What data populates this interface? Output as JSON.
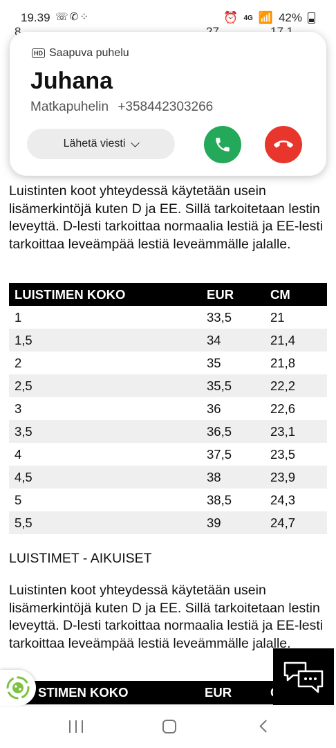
{
  "status_bar": {
    "time": "19.39",
    "notification_icons": "☏✆⁘",
    "signal_label": "4G",
    "battery": "42%"
  },
  "background_partial_row": {
    "size": "8",
    "eur": "27",
    "cm": "17,1"
  },
  "section_1": {
    "paragraph": "Luistinten koot yhteydessä käytetään usein lisämerkintöjä kuten D ja EE. Sillä tarkoitetaan lestin leveyttä. D-lesti tarkoittaa normaalia lestiä ja EE-lesti tarkoittaa leveämpää lestiä leveämmälle jalalle.",
    "table": {
      "headers": [
        "LUISTIMEN KOKO",
        "EUR",
        "CM"
      ],
      "rows": [
        [
          "1",
          "33,5",
          "21"
        ],
        [
          "1,5",
          "34",
          "21,4"
        ],
        [
          "2",
          "35",
          "21,8"
        ],
        [
          "2,5",
          "35,5",
          "22,2"
        ],
        [
          "3",
          "36",
          "22,6"
        ],
        [
          "3,5",
          "36,5",
          "23,1"
        ],
        [
          "4",
          "37,5",
          "23,5"
        ],
        [
          "4,5",
          "38",
          "23,9"
        ],
        [
          "5",
          "38,5",
          "24,3"
        ],
        [
          "5,5",
          "39",
          "24,7"
        ]
      ]
    }
  },
  "section_2": {
    "heading": "LUISTIMET - AIKUISET",
    "paragraph": "Luistinten koot yhteydessä käytetään usein lisämerkintöjä kuten D ja EE. Sillä tarkoitetaan lestin leveyttä. D-lesti tarkoittaa normaalia lestiä ja EE-lesti tarkoittaa leveämpää lestiä leveämmälle jalalle.",
    "table_header_partial": [
      "STIMEN KOKO",
      "EUR",
      "C"
    ]
  },
  "incoming_call": {
    "hd_badge": "HD",
    "title": "Saapuva puhelu",
    "caller_name": "Juhana",
    "caller_type": "Matkapuhelin",
    "caller_number": "+358442303266",
    "message_button": "Lähetä viesti",
    "answer_color": "#24a85a",
    "decline_color": "#e8362c"
  },
  "icons": {
    "chat": "chat-bubbles-icon",
    "cookie": "cookie-consent-icon",
    "answer": "phone-answer-icon",
    "decline": "phone-hangup-icon"
  }
}
